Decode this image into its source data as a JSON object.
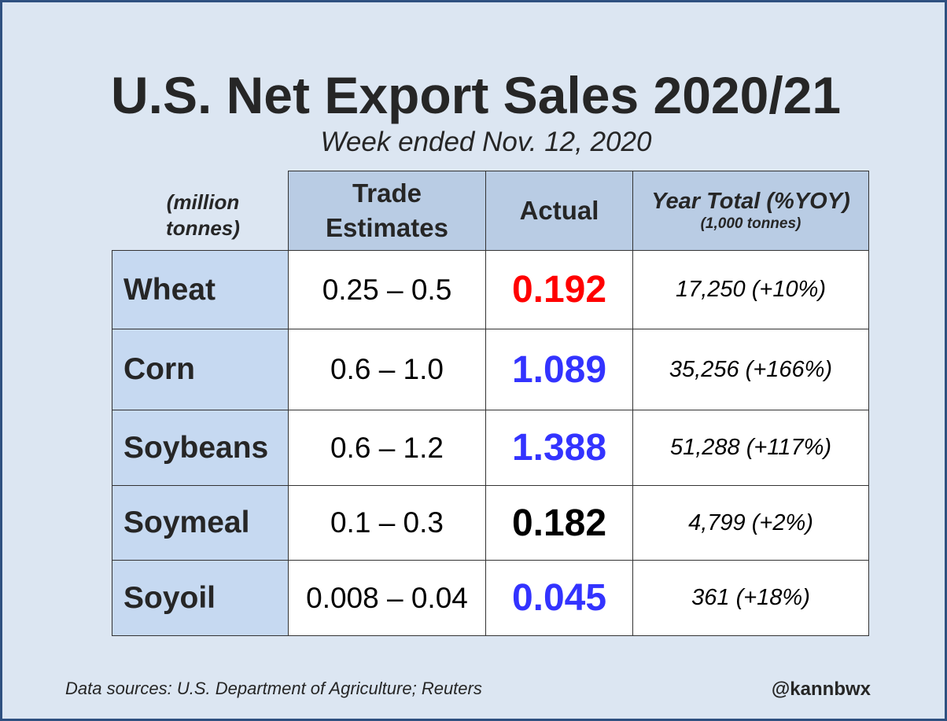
{
  "chart_data": {
    "type": "table",
    "title": "U.S. Net Export Sales 2020/21",
    "subtitle": "Week ended Nov. 12, 2020",
    "units_label": "(million tonnes)",
    "columns": {
      "estimates": "Trade Estimates",
      "actual": "Actual",
      "year_total": "Year Total (%YOY)",
      "year_total_units": "(1,000 tonnes)"
    },
    "rows": [
      {
        "commodity": "Wheat",
        "estimate": "0.25 – 0.5",
        "actual": "0.192",
        "actual_color": "#ff0000",
        "year_total": "17,250 (+10%)"
      },
      {
        "commodity": "Corn",
        "estimate": "0.6 – 1.0",
        "actual": "1.089",
        "actual_color": "#3333ff",
        "year_total": "35,256 (+166%)"
      },
      {
        "commodity": "Soybeans",
        "estimate": "0.6 – 1.2",
        "actual": "1.388",
        "actual_color": "#3333ff",
        "year_total": "51,288 (+117%)"
      },
      {
        "commodity": "Soymeal",
        "estimate": "0.1 – 0.3",
        "actual": "0.182",
        "actual_color": "#000000",
        "year_total": "4,799 (+2%)"
      },
      {
        "commodity": "Soyoil",
        "estimate": "0.008 – 0.04",
        "actual": "0.045",
        "actual_color": "#3333ff",
        "year_total": "361 (+18%)"
      }
    ],
    "source": "Data sources: U.S. Department of Agriculture; Reuters",
    "handle": "@kannbwx"
  }
}
